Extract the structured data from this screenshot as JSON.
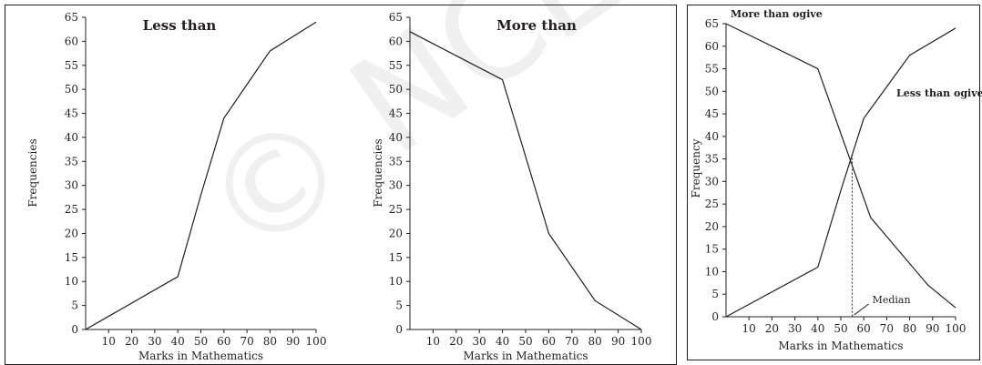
{
  "colors": {
    "line": "#231f20",
    "background": "#ffffff"
  },
  "chart_data": [
    {
      "type": "line",
      "title": "Less than",
      "xlabel": "Marks in Mathematics",
      "ylabel": "Frequencies",
      "xlim": [
        0,
        100
      ],
      "ylim": [
        0,
        65
      ],
      "xticks": [
        "10",
        "20",
        "30",
        "40",
        "50",
        "60",
        "70",
        "80",
        "90",
        "100"
      ],
      "yticks": [
        "0",
        "5",
        "10",
        "15",
        "20",
        "25",
        "30",
        "35",
        "40",
        "45",
        "50",
        "55",
        "60",
        "65"
      ],
      "grid": false,
      "series": [
        {
          "x": [
            0,
            40,
            50,
            60,
            70,
            80,
            100
          ],
          "y": [
            0,
            11,
            28,
            44,
            51,
            58,
            64
          ]
        }
      ]
    },
    {
      "type": "line",
      "title": "More than",
      "xlabel": "Marks in Mathematics",
      "ylabel": "Frequencies",
      "xlim": [
        0,
        100
      ],
      "ylim": [
        0,
        65
      ],
      "xticks": [
        "10",
        "20",
        "30",
        "40",
        "50",
        "60",
        "70",
        "80",
        "90",
        "100"
      ],
      "yticks": [
        "0",
        "5",
        "10",
        "15",
        "20",
        "25",
        "30",
        "35",
        "40",
        "45",
        "50",
        "55",
        "60",
        "65"
      ],
      "grid": false,
      "series": [
        {
          "x": [
            0,
            40,
            60,
            80,
            100
          ],
          "y": [
            62,
            52,
            20,
            6,
            0
          ]
        }
      ]
    },
    {
      "type": "line",
      "title": "",
      "xlabel": "Marks in Mathematics",
      "ylabel": "Frequency",
      "xlim": [
        0,
        100
      ],
      "ylim": [
        0,
        65
      ],
      "xticks": [
        "10",
        "20",
        "30",
        "40",
        "50",
        "60",
        "70",
        "80",
        "90",
        "100"
      ],
      "yticks": [
        "0",
        "5",
        "10",
        "15",
        "20",
        "25",
        "30",
        "35",
        "40",
        "45",
        "50",
        "55",
        "60",
        "65"
      ],
      "grid": false,
      "series": [
        {
          "name": "More than ogive",
          "x": [
            0,
            40,
            63,
            88,
            100
          ],
          "y": [
            65,
            55,
            22,
            7,
            2
          ]
        },
        {
          "name": "Less than ogive",
          "x": [
            0,
            40,
            50,
            60,
            70,
            80,
            100
          ],
          "y": [
            0,
            11,
            28,
            44,
            51,
            58,
            64
          ]
        }
      ],
      "annotations": {
        "median_label": "Median",
        "median_x": 55,
        "median_y": 36
      }
    }
  ]
}
